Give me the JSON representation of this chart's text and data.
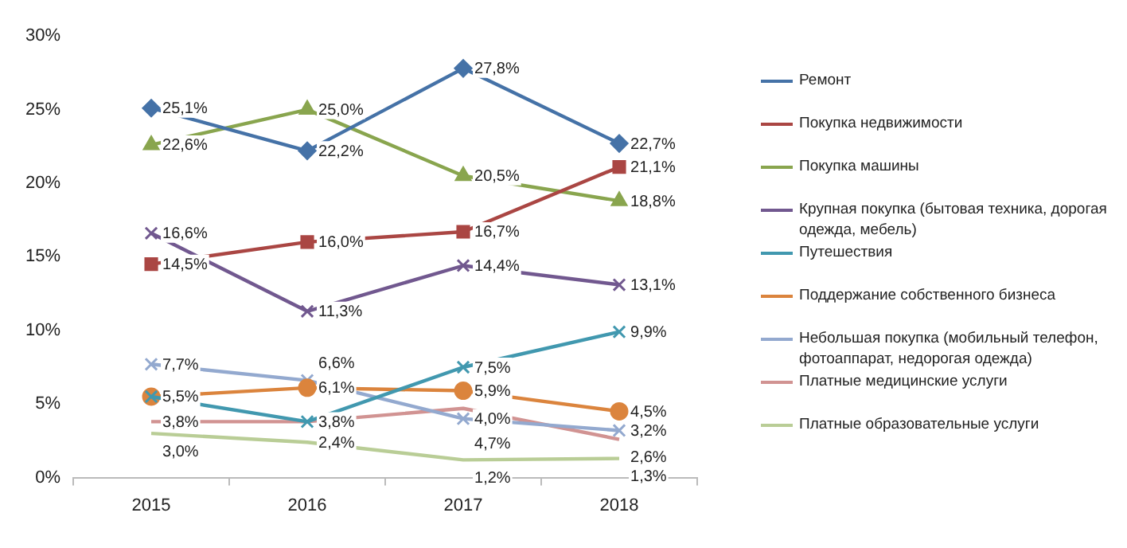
{
  "chart_data": {
    "type": "line",
    "categories": [
      "2015",
      "2016",
      "2017",
      "2018"
    ],
    "ylim": [
      0,
      30
    ],
    "yticks": [
      {
        "value": 0,
        "label": "0%"
      },
      {
        "value": 5,
        "label": "5%"
      },
      {
        "value": 10,
        "label": "10%"
      },
      {
        "value": 15,
        "label": "15%"
      },
      {
        "value": 20,
        "label": "20%"
      },
      {
        "value": 25,
        "label": "25%"
      },
      {
        "value": 30,
        "label": "30%"
      }
    ],
    "grid": false,
    "legend": "right",
    "series": [
      {
        "name": "Ремонт",
        "color": "#4572a7",
        "marker": "diamond",
        "values": [
          25.1,
          22.2,
          27.8,
          22.7
        ],
        "value_labels": [
          "25,1%",
          "22,2%",
          "27,8%",
          "22,7%"
        ]
      },
      {
        "name": "Покупка недвижимости",
        "color": "#aa4643",
        "marker": "square",
        "values": [
          14.5,
          16.0,
          16.7,
          21.1
        ],
        "value_labels": [
          "14,5%",
          "16,0%",
          "16,7%",
          "21,1%"
        ]
      },
      {
        "name": "Покупка машины",
        "color": "#89a54e",
        "marker": "triangle",
        "values": [
          22.6,
          25.0,
          20.5,
          18.8
        ],
        "value_labels": [
          "22,6%",
          "25,0%",
          "20,5%",
          "18,8%"
        ]
      },
      {
        "name": "Крупная покупка (бытовая техника, дорогая одежда, мебель)",
        "color": "#71588f",
        "marker": "cross",
        "values": [
          16.6,
          11.3,
          14.4,
          13.1
        ],
        "value_labels": [
          "16,6%",
          "11,3%",
          "14,4%",
          "13,1%"
        ]
      },
      {
        "name": "Путешествия",
        "color": "#4198af",
        "marker": "cross",
        "values": [
          5.5,
          3.8,
          7.5,
          9.9
        ],
        "value_labels": [
          null,
          "3,8%",
          "7,5%",
          "9,9%"
        ]
      },
      {
        "name": "Поддержание собственного бизнеса",
        "color": "#db843d",
        "marker": "circle",
        "values": [
          5.5,
          6.1,
          5.9,
          4.5
        ],
        "value_labels": [
          "5,5%",
          "6,1%",
          "5,9%",
          "4,5%"
        ]
      },
      {
        "name": "Небольшая покупка (мобильный телефон, фотоаппарат, недорогая одежда)",
        "color": "#93a9cf",
        "marker": "cross",
        "values": [
          7.7,
          6.6,
          4.0,
          3.2
        ],
        "value_labels": [
          "7,7%",
          "6,6%",
          "4,0%",
          "3,2%"
        ]
      },
      {
        "name": "Платные медицинские услуги",
        "color": "#d19392",
        "marker": "none",
        "values": [
          3.8,
          3.8,
          4.7,
          2.6
        ],
        "value_labels": [
          "3,8%",
          null,
          "4,7%",
          "2,6%"
        ]
      },
      {
        "name": "Платные образовательные услуги",
        "color": "#b9cd96",
        "marker": "none",
        "values": [
          3.0,
          2.4,
          1.2,
          1.3
        ],
        "value_labels": [
          "3,0%",
          "2,4%",
          "1,2%",
          "1,3%"
        ]
      }
    ]
  }
}
